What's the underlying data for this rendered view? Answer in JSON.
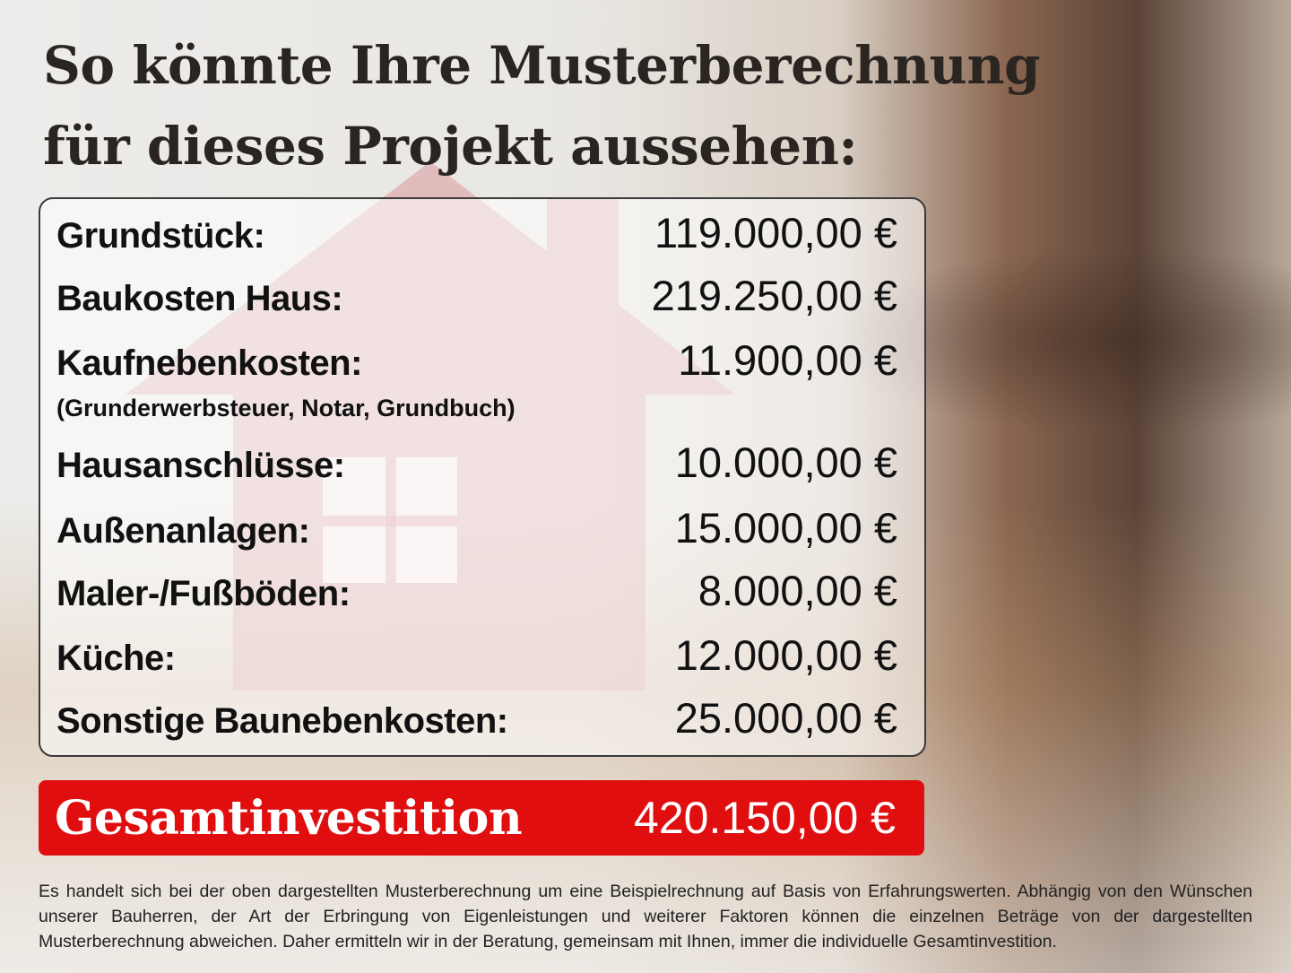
{
  "title": {
    "line1": "So könnte Ihre Musterberechnung",
    "line2": "für dieses Projekt aussehen:"
  },
  "items": [
    {
      "label": "Grundstück:",
      "value": "119.000,00 €"
    },
    {
      "label": "Baukosten Haus:",
      "value": "219.250,00 €"
    },
    {
      "label": "Kaufnebenkosten:",
      "value": "11.900,00 €",
      "note": "(Grunderwerbsteuer, Notar, Grundbuch)"
    },
    {
      "label": "Hausanschlüsse:",
      "value": "10.000,00 €"
    },
    {
      "label": "Außenanlagen:",
      "value": "15.000,00 €"
    },
    {
      "label": "Maler-/Fußböden:",
      "value": "8.000,00 €"
    },
    {
      "label": "Küche:",
      "value": "12.000,00 €"
    },
    {
      "label": "Sonstige Baunebenkosten:",
      "value": "25.000,00 €"
    }
  ],
  "total": {
    "label": "Gesamtinvestition",
    "value": "420.150,00 €"
  },
  "disclaimer": "Es handelt sich bei der oben dargestellten Musterberechnung um eine Beispielrechnung auf Basis von Erfahrungswerten. Abhängig von den Wünschen unserer Bauherren, der Art der Erbringung von Eigenleistungen und weiterer Faktoren können die einzelnen Beträge von der dargestellten Musterberechnung abweichen. Daher ermitteln wir in der Beratung, gemeinsam mit Ihnen, immer die individuelle Gesamtinvestition.",
  "colors": {
    "accent": "#e10e10",
    "text": "#111111"
  }
}
